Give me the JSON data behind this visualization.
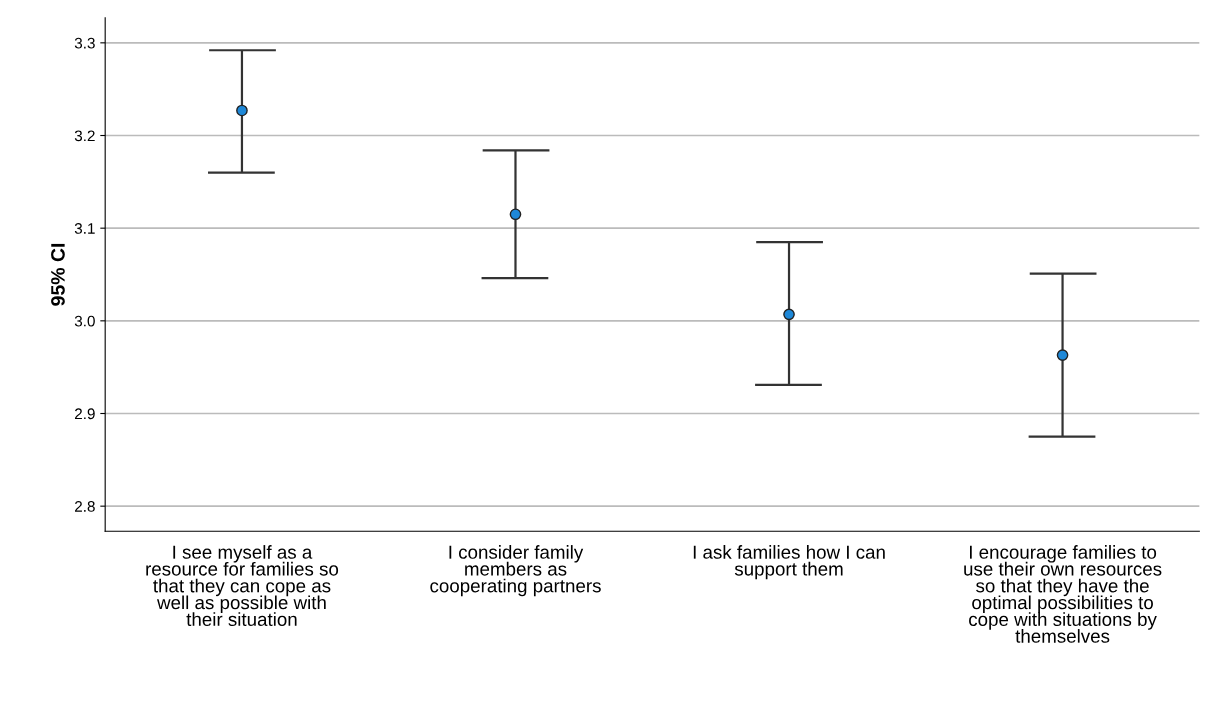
{
  "chart_data": {
    "type": "scatter",
    "ylabel": "95% CI",
    "categories": [
      "I see myself as a\nresource for families so\nthat they can cope as\nwell as possible with\ntheir situation",
      "I consider family\nmembers as\ncooperating partners",
      "I ask families how I can\nsupport them",
      "I encourage families to\nuse their own resources\nso that they have the\noptimal possibilities to\ncope with situations by\nthemselves"
    ],
    "values": [
      3.227,
      3.115,
      3.007,
      2.963
    ],
    "errors": [
      [
        3.16,
        3.292
      ],
      [
        3.046,
        3.184
      ],
      [
        2.931,
        3.085
      ],
      [
        2.875,
        3.051
      ]
    ],
    "color": "#1e88d8",
    "marker": "circle",
    "ylim": [
      2.773,
      3.327
    ],
    "yticks": [
      2.8,
      2.9,
      {
        "value": 3.0,
        "label": "3.0"
      },
      3.1,
      3.2,
      3.3
    ],
    "grid": "y"
  }
}
